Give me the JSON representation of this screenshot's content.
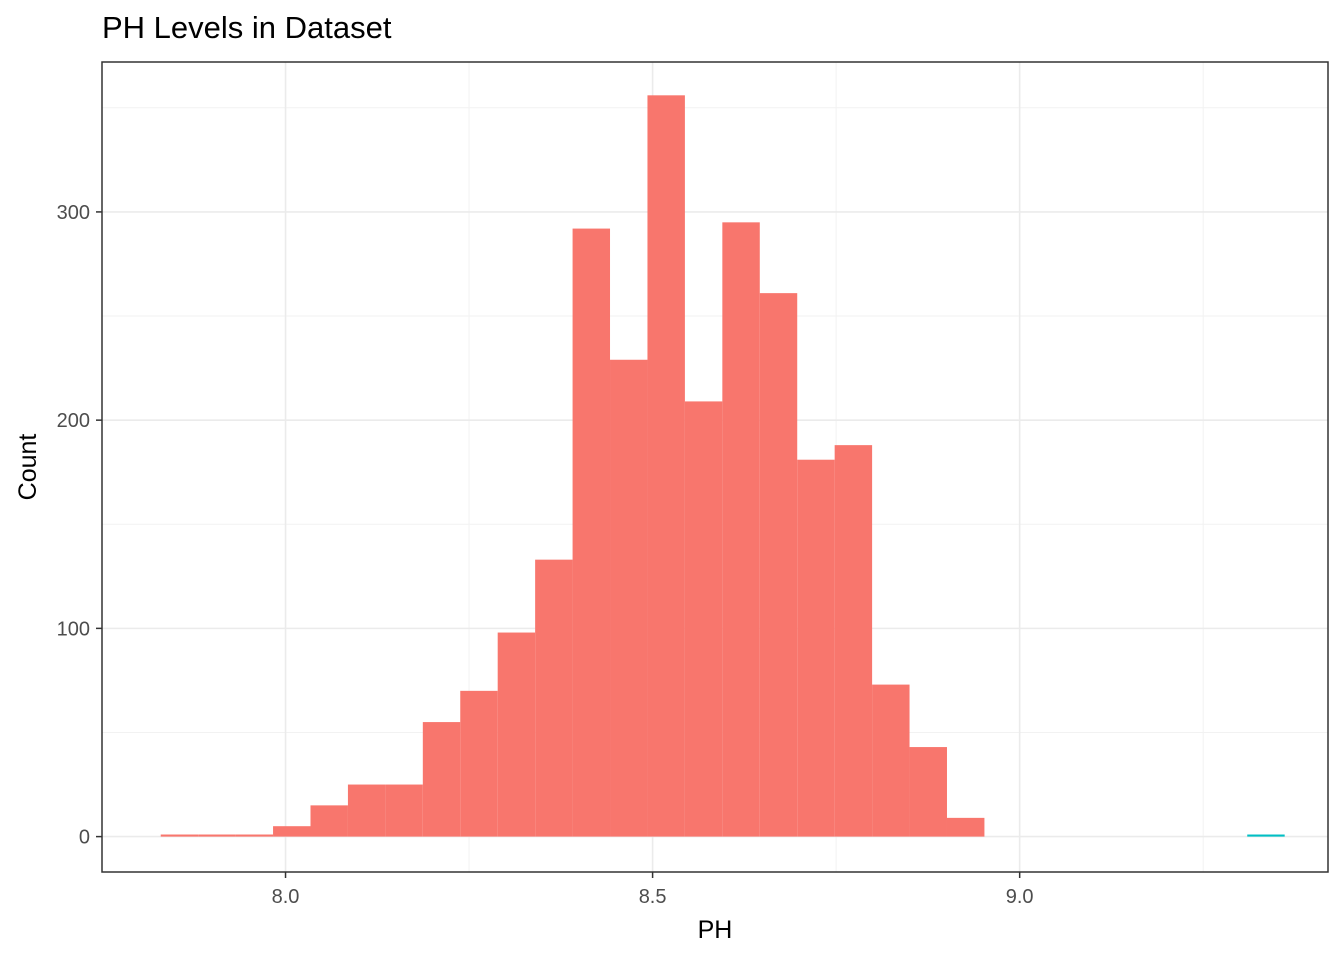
{
  "chart_data": {
    "type": "bar",
    "title": "PH Levels in Dataset",
    "xlabel": "PH",
    "ylabel": "Count",
    "xlim": [
      7.75,
      9.42
    ],
    "ylim": [
      -17,
      372
    ],
    "grid": true,
    "legend": "none",
    "x_ticks": [
      8.0,
      8.5,
      9.0
    ],
    "x_tick_labels": [
      "8.0",
      "8.5",
      "9.0"
    ],
    "y_ticks": [
      0,
      100,
      200,
      300
    ],
    "y_tick_labels": [
      "0",
      "100",
      "200",
      "300"
    ],
    "bin_width": 0.051,
    "series": [
      {
        "color": "#F8766D",
        "bins": [
          {
            "x0": 7.83,
            "x1": 7.881,
            "count": 1
          },
          {
            "x0": 7.881,
            "x1": 7.932,
            "count": 1
          },
          {
            "x0": 7.932,
            "x1": 7.983,
            "count": 1
          },
          {
            "x0": 7.983,
            "x1": 8.034,
            "count": 5
          },
          {
            "x0": 8.034,
            "x1": 8.085,
            "count": 15
          },
          {
            "x0": 8.085,
            "x1": 8.136,
            "count": 25
          },
          {
            "x0": 8.136,
            "x1": 8.187,
            "count": 25
          },
          {
            "x0": 8.187,
            "x1": 8.238,
            "count": 55
          },
          {
            "x0": 8.238,
            "x1": 8.289,
            "count": 70
          },
          {
            "x0": 8.289,
            "x1": 8.34,
            "count": 98
          },
          {
            "x0": 8.34,
            "x1": 8.391,
            "count": 133
          },
          {
            "x0": 8.391,
            "x1": 8.442,
            "count": 292
          },
          {
            "x0": 8.442,
            "x1": 8.493,
            "count": 229
          },
          {
            "x0": 8.493,
            "x1": 8.544,
            "count": 356
          },
          {
            "x0": 8.544,
            "x1": 8.595,
            "count": 209
          },
          {
            "x0": 8.595,
            "x1": 8.646,
            "count": 295
          },
          {
            "x0": 8.646,
            "x1": 8.697,
            "count": 261
          },
          {
            "x0": 8.697,
            "x1": 8.748,
            "count": 181
          },
          {
            "x0": 8.748,
            "x1": 8.799,
            "count": 188
          },
          {
            "x0": 8.799,
            "x1": 8.85,
            "count": 73
          },
          {
            "x0": 8.85,
            "x1": 8.901,
            "count": 43
          },
          {
            "x0": 8.901,
            "x1": 8.952,
            "count": 9
          }
        ]
      },
      {
        "color": "#00BFC4",
        "bins": [
          {
            "x0": 9.31,
            "x1": 9.361,
            "count": 1
          }
        ]
      }
    ]
  }
}
